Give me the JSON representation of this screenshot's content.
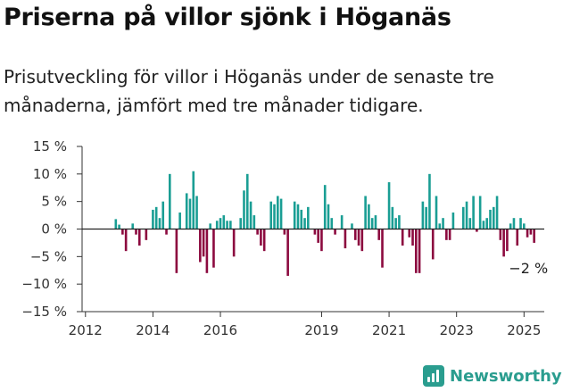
{
  "title": "Priserna på villor sjönk i Höganäs",
  "subtitle": "Prisutveckling för villor i Höganäs under de senaste tre månaderna, jämfört med tre månader tidigare.",
  "brand": "Newsworthy",
  "colors": {
    "positive": "#1a9e94",
    "negative": "#8c0a3f",
    "axis": "#333333",
    "brand": "#2a9d8f"
  },
  "icons": {
    "logo": "bar-chart-icon"
  },
  "chart_data": {
    "type": "bar",
    "title": "Priserna på villor sjönk i Höganäs",
    "xlabel": "",
    "ylabel": "",
    "ylim": [
      -15,
      15
    ],
    "y_ticks": [
      15,
      10,
      5,
      0,
      -5,
      -10,
      -15
    ],
    "y_tick_labels": [
      "15 %",
      "10 %",
      "5 %",
      "0 %",
      "−5 %",
      "−10 %",
      "−15 %"
    ],
    "x_ticks": [
      2012,
      2014,
      2016,
      2019,
      2021,
      2023,
      2025
    ],
    "x_range": [
      2011.9,
      2025.6
    ],
    "grid": false,
    "annotation": {
      "text": "−2 %",
      "x": 2025.0,
      "y": -2
    },
    "x": [
      2012.9,
      2013.0,
      2013.1,
      2013.2,
      2013.3,
      2013.4,
      2013.5,
      2013.6,
      2013.7,
      2013.8,
      2013.9,
      2014.0,
      2014.1,
      2014.2,
      2014.3,
      2014.4,
      2014.5,
      2014.6,
      2014.7,
      2014.8,
      2014.9,
      2015.0,
      2015.1,
      2015.2,
      2015.3,
      2015.4,
      2015.5,
      2015.6,
      2015.7,
      2015.8,
      2015.9,
      2016.0,
      2016.1,
      2016.2,
      2016.3,
      2016.4,
      2016.5,
      2016.6,
      2016.7,
      2016.8,
      2016.9,
      2017.0,
      2017.1,
      2017.2,
      2017.3,
      2017.4,
      2017.5,
      2017.6,
      2017.7,
      2017.8,
      2017.9,
      2018.0,
      2018.1,
      2018.2,
      2018.3,
      2018.4,
      2018.5,
      2018.6,
      2018.7,
      2018.8,
      2018.9,
      2019.0,
      2019.1,
      2019.2,
      2019.3,
      2019.4,
      2019.5,
      2019.6,
      2019.7,
      2019.8,
      2019.9,
      2020.0,
      2020.1,
      2020.2,
      2020.3,
      2020.4,
      2020.5,
      2020.6,
      2020.7,
      2020.8,
      2020.9,
      2021.0,
      2021.1,
      2021.2,
      2021.3,
      2021.4,
      2021.5,
      2021.6,
      2021.7,
      2021.8,
      2021.9,
      2022.0,
      2022.1,
      2022.2,
      2022.3,
      2022.4,
      2022.5,
      2022.6,
      2022.7,
      2022.8,
      2022.9,
      2023.0,
      2023.1,
      2023.2,
      2023.3,
      2023.4,
      2023.5,
      2023.6,
      2023.7,
      2023.8,
      2023.9,
      2024.0,
      2024.1,
      2024.2,
      2024.3,
      2024.4,
      2024.5,
      2024.6,
      2024.7,
      2024.8,
      2024.9,
      2025.0,
      2025.1,
      2025.2,
      2025.3
    ],
    "values": [
      1.8,
      0.8,
      -1,
      -4,
      0,
      1,
      -1,
      -3,
      0,
      -2,
      0,
      3.5,
      4,
      2,
      5,
      -1,
      10,
      0,
      -8,
      3,
      0,
      6.5,
      5.5,
      10.5,
      6,
      -6,
      -5,
      -8,
      1,
      -7,
      1.5,
      2,
      2.5,
      1.5,
      1.5,
      -5,
      0,
      2,
      7,
      10,
      5,
      2.5,
      -1,
      -3,
      -4,
      0,
      5,
      4.5,
      6,
      5.5,
      -1,
      -8.5,
      0,
      5,
      4.5,
      3.5,
      2,
      4,
      0,
      -1,
      -2.5,
      -4,
      8,
      4.5,
      2,
      -1,
      0,
      2.5,
      -3.5,
      0,
      1,
      -2,
      -3,
      -4,
      6,
      4.5,
      2,
      2.5,
      -2,
      -7,
      0,
      8.5,
      4,
      2,
      2.5,
      -3,
      0,
      -1.5,
      -3,
      -8,
      -8,
      5,
      4,
      10,
      -5.5,
      6,
      1,
      2,
      -2,
      -2,
      3,
      0,
      0,
      4,
      5,
      2,
      6,
      -0.5,
      6,
      1.5,
      2,
      3.5,
      4,
      6,
      -2,
      -5,
      -4,
      1,
      2,
      -3,
      2,
      1,
      -1.5,
      -1,
      -2.5
    ]
  }
}
